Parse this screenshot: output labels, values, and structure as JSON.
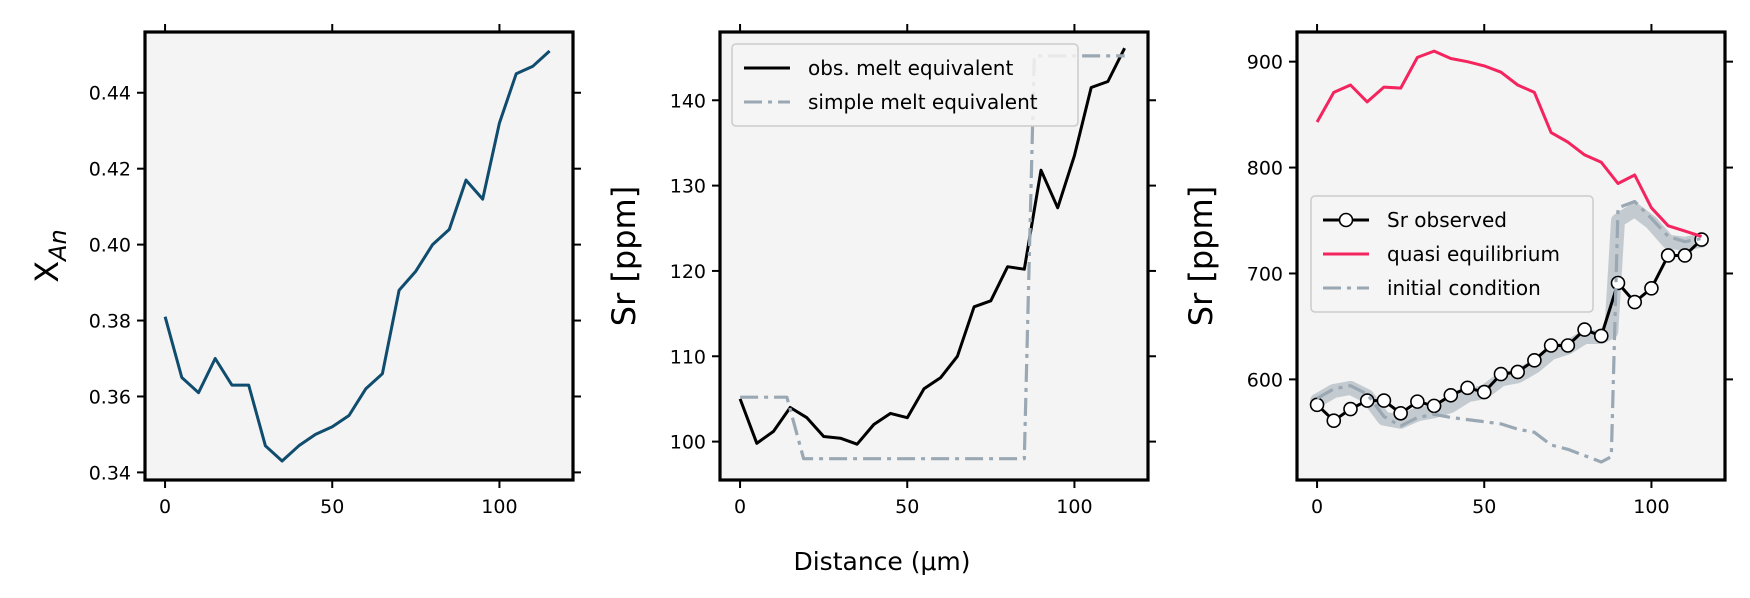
{
  "figure": {
    "xlabel": "Distance (μm)"
  },
  "chart_data": [
    {
      "type": "line",
      "panel": "left",
      "ylabel_main": "X",
      "ylabel_sub": "An",
      "xlim": [
        -6,
        122
      ],
      "ylim": [
        0.338,
        0.456
      ],
      "xticks": [
        0,
        50,
        100
      ],
      "yticks": [
        0.34,
        0.36,
        0.38,
        0.4,
        0.42,
        0.44
      ],
      "ytick_labels": [
        "0.34",
        "0.36",
        "0.38",
        "0.40",
        "0.42",
        "0.44"
      ],
      "series": [
        {
          "color": "#0f4c6e",
          "style": "solid",
          "x": [
            0,
            5,
            10,
            15,
            20,
            25,
            30,
            35,
            40,
            45,
            50,
            55,
            60,
            65,
            70,
            75,
            80,
            85,
            90,
            95,
            100,
            105,
            110,
            115
          ],
          "y": [
            0.381,
            0.365,
            0.361,
            0.37,
            0.363,
            0.363,
            0.347,
            0.343,
            0.347,
            0.35,
            0.352,
            0.355,
            0.362,
            0.366,
            0.388,
            0.393,
            0.4,
            0.404,
            0.417,
            0.412,
            0.432,
            0.445,
            0.447,
            0.451
          ]
        }
      ]
    },
    {
      "type": "line",
      "panel": "middle",
      "ylabel": "Sr [ppm]",
      "xlim": [
        -6,
        122
      ],
      "ylim": [
        95.5,
        148.0
      ],
      "xticks": [
        0,
        50,
        100
      ],
      "yticks": [
        100,
        110,
        120,
        130,
        140
      ],
      "ytick_labels": [
        "100",
        "110",
        "120",
        "130",
        "140"
      ],
      "legend_position": "top-left",
      "series": [
        {
          "name": "obs. melt equivalent",
          "color": "#000000",
          "style": "solid",
          "x": [
            0,
            5,
            10,
            15,
            20,
            25,
            30,
            35,
            40,
            45,
            50,
            55,
            60,
            65,
            70,
            75,
            80,
            85,
            90,
            95,
            100,
            105,
            110,
            115
          ],
          "y": [
            105.0,
            99.8,
            101.2,
            104.0,
            102.8,
            100.6,
            100.4,
            99.7,
            102.0,
            103.3,
            102.8,
            106.2,
            107.5,
            110.0,
            115.8,
            116.5,
            120.5,
            120.2,
            131.8,
            127.4,
            133.5,
            141.5,
            142.2,
            146.1
          ]
        },
        {
          "name": "simple melt equivalent",
          "color": "#9aa8b4",
          "style": "dashdot",
          "x": [
            0,
            14,
            19,
            85,
            88,
            115
          ],
          "y": [
            105.2,
            105.2,
            98.0,
            98.0,
            145.2,
            145.2
          ]
        }
      ]
    },
    {
      "type": "line",
      "panel": "right",
      "ylabel": "Sr [ppm]",
      "xlim": [
        -6,
        122
      ],
      "ylim": [
        505,
        928
      ],
      "xticks": [
        0,
        50,
        100
      ],
      "yticks": [
        600,
        700,
        800,
        900
      ],
      "ytick_labels": [
        "600",
        "700",
        "800",
        "900"
      ],
      "legend_position": "center-left",
      "series": [
        {
          "name": "Sr observed",
          "color": "#000000",
          "style": "solid-markers",
          "x": [
            0,
            5,
            10,
            15,
            20,
            25,
            30,
            35,
            40,
            45,
            50,
            55,
            60,
            65,
            70,
            75,
            80,
            85,
            90,
            95,
            100,
            105,
            110,
            115
          ],
          "y": [
            576,
            561,
            572,
            580,
            580,
            568,
            579,
            575,
            585,
            592,
            588,
            605,
            607,
            618,
            632,
            632,
            647,
            641,
            691,
            673,
            686,
            717,
            717,
            732
          ]
        },
        {
          "name": "quasi equilibrium",
          "color": "#f4245e",
          "style": "solid",
          "x": [
            0,
            5,
            10,
            15,
            20,
            25,
            30,
            35,
            40,
            45,
            50,
            55,
            60,
            65,
            70,
            75,
            80,
            85,
            90,
            95,
            100,
            105,
            110,
            115
          ],
          "y": [
            843,
            871,
            878,
            862,
            876,
            875,
            904,
            910,
            903,
            900,
            896,
            890,
            878,
            871,
            833,
            824,
            812,
            805,
            785,
            793,
            762,
            745,
            740,
            735
          ]
        },
        {
          "name": "initial condition",
          "color": "#9aa8b4",
          "style": "dashdot",
          "x": [
            0,
            5,
            10,
            15,
            20,
            25,
            30,
            35,
            40,
            45,
            50,
            55,
            60,
            65,
            70,
            75,
            80,
            85,
            88,
            90,
            95,
            100,
            105,
            110,
            115
          ],
          "y": [
            582,
            591,
            594,
            586,
            565,
            556,
            564,
            567,
            564,
            562,
            560,
            558,
            553,
            550,
            538,
            534,
            528,
            522,
            527,
            762,
            768,
            752,
            735,
            730,
            733
          ]
        },
        {
          "name": "",
          "color": "#bfc6cc",
          "style": "band",
          "x": [
            0,
            5,
            10,
            15,
            20,
            25,
            30,
            35,
            40,
            45,
            50,
            55,
            60,
            65,
            70,
            75,
            80,
            85,
            88,
            90,
            95,
            100,
            105,
            110,
            115
          ],
          "y": [
            580,
            589,
            592,
            584,
            563,
            560,
            567,
            570,
            575,
            585,
            588,
            600,
            603,
            612,
            625,
            630,
            640,
            640,
            645,
            750,
            760,
            748,
            730,
            728,
            731
          ]
        }
      ]
    }
  ]
}
